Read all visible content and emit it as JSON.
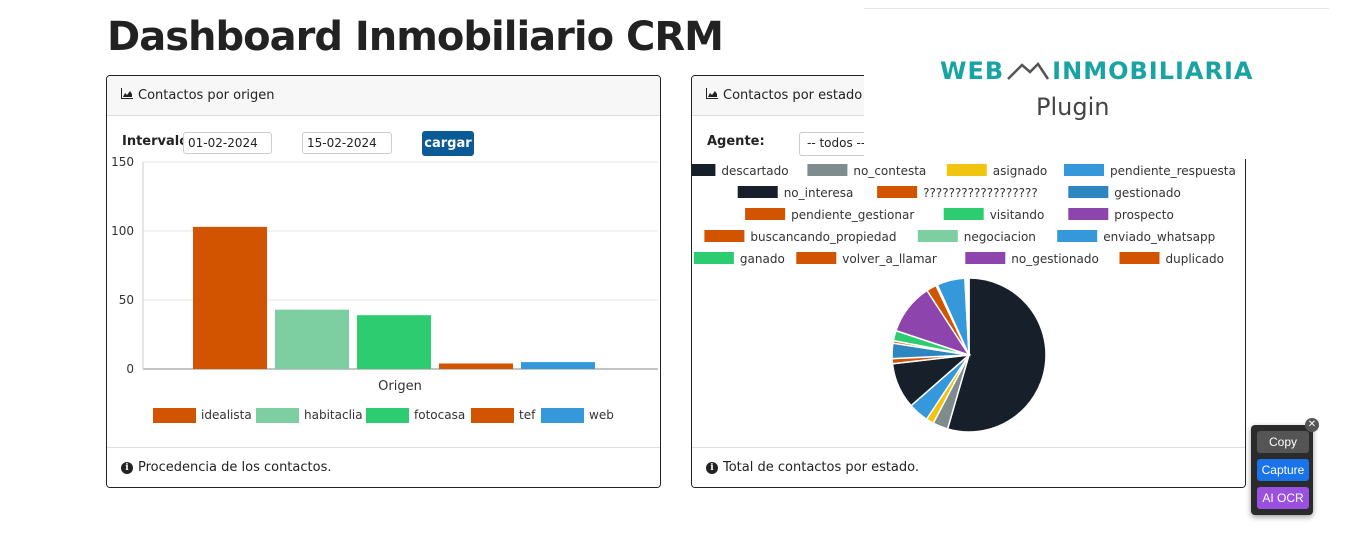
{
  "page": {
    "title": "Dashboard Inmobiliario CRM"
  },
  "left_card": {
    "header": "Contactos por origen",
    "interval_label": "Intervalo:",
    "date_from": "01-02-2024",
    "date_to": "15-02-2024",
    "load_button": "cargar",
    "footer": "Procedencia de los contactos.",
    "header_icon": "area-chart-icon",
    "footer_icon": "info-icon"
  },
  "right_card": {
    "header": "Contactos por estado",
    "agent_label": "Agente:",
    "agent_select": "-- todos --",
    "footer": "Total de contactos por estado.",
    "header_icon": "area-chart-icon",
    "footer_icon": "info-icon"
  },
  "logo": {
    "line1": "WEB INMOBILIARIA",
    "line2": "Plugin"
  },
  "ocr_widget": {
    "copy": "Copy",
    "capture": "Capture",
    "ai_ocr": "AI OCR",
    "close": "✕"
  },
  "chart_data": [
    {
      "type": "bar",
      "xlabel": "Origen",
      "ylabel": "",
      "ylim": [
        0,
        150
      ],
      "yticks": [
        0,
        50,
        100,
        150
      ],
      "categories": [
        "idealista",
        "habitaclia",
        "fotocasa",
        "tef",
        "web"
      ],
      "values": [
        103,
        43,
        39,
        4,
        5
      ],
      "colors": [
        "#d35400",
        "#7dcea0",
        "#2ecc71",
        "#d35400",
        "#3498db"
      ],
      "legend": [
        "idealista",
        "habitaclia",
        "fotocasa",
        "tef",
        "web"
      ],
      "legend_position": "bottom",
      "grid": true
    },
    {
      "type": "pie",
      "legend_position": "top",
      "slices": [
        {
          "label": "descartado",
          "value": 51,
          "color": "#17202a"
        },
        {
          "label": "no_contesta",
          "value": 3,
          "color": "#7f8c8d"
        },
        {
          "label": "asignado",
          "value": 1.5,
          "color": "#f1c40f"
        },
        {
          "label": "pendiente_respuesta",
          "value": 4,
          "color": "#3498db"
        },
        {
          "label": "no_interesa",
          "value": 9,
          "color": "#17202a"
        },
        {
          "label": "??????????????????",
          "value": 1,
          "color": "#d35400"
        },
        {
          "label": "gestionado",
          "value": 3,
          "color": "#2e86c1"
        },
        {
          "label": "pendiente_gestionar",
          "value": 0.5,
          "color": "#d35400"
        },
        {
          "label": "visitando",
          "value": 2,
          "color": "#2ecc71"
        },
        {
          "label": "prospecto",
          "value": 10,
          "color": "#8e44ad"
        },
        {
          "label": "buscancando_propiedad",
          "value": 2,
          "color": "#d35400"
        },
        {
          "label": "negociacion",
          "value": 0.3,
          "color": "#7dcea0"
        },
        {
          "label": "enviado_whatsapp",
          "value": 5.5,
          "color": "#3498db"
        },
        {
          "label": "ganado",
          "value": 0.2,
          "color": "#2ecc71"
        },
        {
          "label": "volver_a_llamar",
          "value": 0.2,
          "color": "#d35400"
        },
        {
          "label": "no_gestionado",
          "value": 0.2,
          "color": "#8e44ad"
        },
        {
          "label": "duplicado",
          "value": 0.2,
          "color": "#d35400"
        }
      ]
    }
  ]
}
